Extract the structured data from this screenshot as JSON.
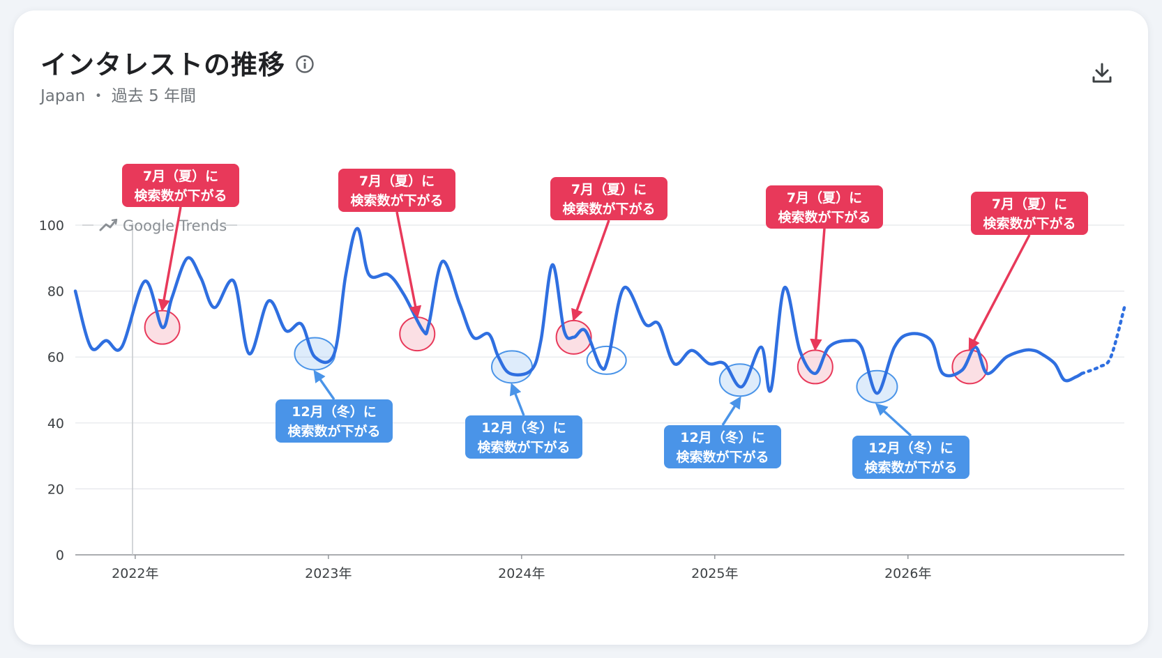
{
  "header": {
    "title": "インタレストの推移",
    "subtitle": "Japan ・ 過去 5 年間",
    "info_icon": "info-icon",
    "download_icon": "download-icon"
  },
  "watermark": "Google Trends",
  "colors": {
    "line": "#2f6fe0",
    "summer": "#e8395a",
    "winter": "#4a94e8"
  },
  "chart_data": {
    "type": "line",
    "ylim": [
      0,
      100
    ],
    "yticks": [
      "0",
      "20",
      "40",
      "60",
      "80",
      "100"
    ],
    "xticks": [
      {
        "label": "2022年",
        "x": 2022.0
      },
      {
        "label": "2023年",
        "x": 2023.0
      },
      {
        "label": "2024年",
        "x": 2024.0
      },
      {
        "label": "2025年",
        "x": 2025.0
      },
      {
        "label": "2026年",
        "x": 2026.0
      }
    ],
    "grid": true,
    "series": [
      {
        "points": [
          [
            2021.69,
            80
          ],
          [
            2021.77,
            63
          ],
          [
            2021.85,
            65
          ],
          [
            2021.93,
            63
          ],
          [
            2022.05,
            83
          ],
          [
            2022.14,
            69
          ],
          [
            2022.19,
            78
          ],
          [
            2022.27,
            90
          ],
          [
            2022.34,
            84
          ],
          [
            2022.41,
            75
          ],
          [
            2022.51,
            83
          ],
          [
            2022.59,
            61
          ],
          [
            2022.69,
            77
          ],
          [
            2022.78,
            68
          ],
          [
            2022.86,
            70
          ],
          [
            2022.93,
            60
          ],
          [
            2023.03,
            61
          ],
          [
            2023.09,
            85
          ],
          [
            2023.15,
            99
          ],
          [
            2023.21,
            85
          ],
          [
            2023.31,
            85
          ],
          [
            2023.39,
            79
          ],
          [
            2023.49,
            68
          ],
          [
            2023.52,
            70
          ],
          [
            2023.59,
            89
          ],
          [
            2023.68,
            76
          ],
          [
            2023.75,
            66
          ],
          [
            2023.83,
            67
          ],
          [
            2023.88,
            60
          ],
          [
            2023.94,
            55
          ],
          [
            2024.05,
            56
          ],
          [
            2024.1,
            65
          ],
          [
            2024.16,
            88
          ],
          [
            2024.22,
            68
          ],
          [
            2024.27,
            66
          ],
          [
            2024.33,
            68
          ],
          [
            2024.41,
            57
          ],
          [
            2024.45,
            60
          ],
          [
            2024.53,
            81
          ],
          [
            2024.64,
            70
          ],
          [
            2024.71,
            70
          ],
          [
            2024.79,
            58
          ],
          [
            2024.88,
            62
          ],
          [
            2024.97,
            58
          ],
          [
            2025.05,
            58
          ],
          [
            2025.14,
            51
          ],
          [
            2025.24,
            63
          ],
          [
            2025.29,
            50
          ],
          [
            2025.36,
            81
          ],
          [
            2025.44,
            62
          ],
          [
            2025.52,
            55
          ],
          [
            2025.59,
            63
          ],
          [
            2025.69,
            65
          ],
          [
            2025.76,
            63
          ],
          [
            2025.84,
            49
          ],
          [
            2025.93,
            63
          ],
          [
            2026.01,
            67
          ],
          [
            2026.12,
            65
          ],
          [
            2026.18,
            55
          ],
          [
            2026.28,
            56
          ],
          [
            2026.35,
            63
          ],
          [
            2026.41,
            55
          ],
          [
            2026.51,
            60
          ],
          [
            2026.6,
            62
          ],
          [
            2026.65,
            62
          ],
          [
            2026.69,
            61
          ],
          [
            2026.76,
            58
          ],
          [
            2026.81,
            53
          ],
          [
            2026.87,
            54
          ],
          [
            2026.9,
            55
          ]
        ],
        "projection": [
          [
            2026.9,
            55
          ],
          [
            2026.99,
            57
          ],
          [
            2027.05,
            60
          ],
          [
            2027.12,
            75
          ]
        ]
      }
    ],
    "annotations": [
      {
        "kind": "summer",
        "text": [
          "7月（夏）に",
          "検索数が下がる"
        ],
        "x": 2022.14,
        "y": 69
      },
      {
        "kind": "summer",
        "text": [
          "7月（夏）に",
          "検索数が下がる"
        ],
        "x": 2023.46,
        "y": 67
      },
      {
        "kind": "summer",
        "text": [
          "7月（夏）に",
          "検索数が下がる"
        ],
        "x": 2024.27,
        "y": 66
      },
      {
        "kind": "summer",
        "text": [
          "7月（夏）に",
          "検索数が下がる"
        ],
        "x": 2025.52,
        "y": 57
      },
      {
        "kind": "summer",
        "text": [
          "7月（夏）に",
          "検索数が下がる"
        ],
        "x": 2026.32,
        "y": 57
      },
      {
        "kind": "winter",
        "text": [
          "12月（冬）に",
          "検索数が下がる"
        ],
        "x": 2022.93,
        "y": 61
      },
      {
        "kind": "winter",
        "text": [
          "12月（冬）に",
          "検索数が下がる"
        ],
        "x": 2023.95,
        "y": 57
      },
      {
        "kind": "winter",
        "text": [
          "12月（冬）に",
          "検索数が下がる"
        ],
        "x": 2025.13,
        "y": 53
      },
      {
        "kind": "winter",
        "text": [
          "12月（冬）に",
          "検索数が下がる"
        ],
        "x": 2025.84,
        "y": 51
      }
    ],
    "extra_highlight": {
      "kind": "winter",
      "x": 2024.44,
      "y": 59
    }
  }
}
